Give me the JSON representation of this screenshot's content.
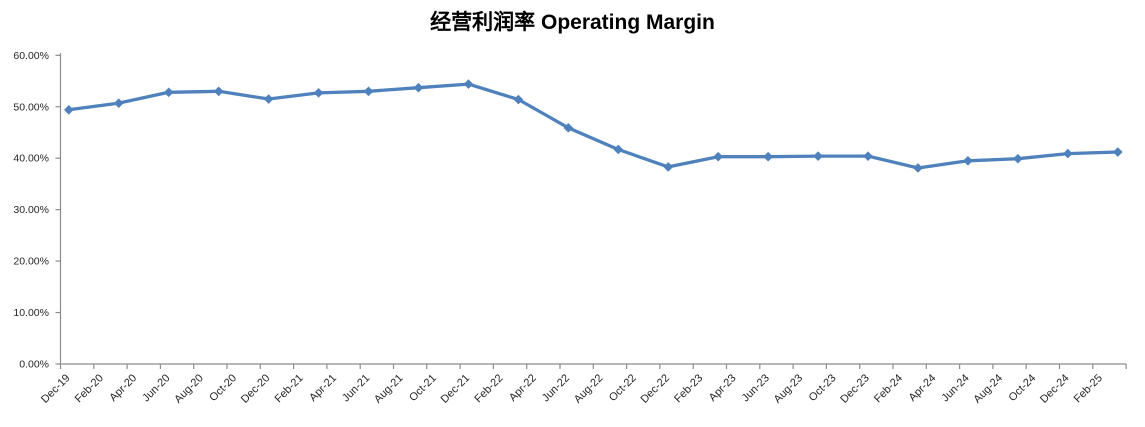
{
  "title": "经营利润率 Operating Margin",
  "chart_data": {
    "type": "line",
    "title": "经营利润率 Operating Margin",
    "series": [
      {
        "name": "经营利润率 Operating Margin",
        "x": [
          "Dec-19",
          "Mar-20",
          "Jun-20",
          "Sep-20",
          "Dec-20",
          "Mar-21",
          "Jun-21",
          "Sep-21",
          "Dec-21",
          "Mar-22",
          "Jun-22",
          "Sep-22",
          "Dec-22",
          "Mar-23",
          "Jun-23",
          "Sep-23",
          "Dec-23",
          "Mar-24",
          "Jun-24",
          "Sep-24",
          "Dec-24",
          "Mar-25"
        ],
        "values": [
          49.4,
          50.7,
          52.8,
          53.0,
          51.5,
          52.7,
          53.0,
          53.7,
          54.4,
          51.4,
          45.9,
          41.7,
          38.3,
          40.3,
          40.3,
          40.4,
          40.4,
          38.1,
          39.5,
          39.9,
          40.9,
          41.2
        ],
        "unit": "%"
      }
    ],
    "x_tick_labels": [
      "Dec-19",
      "Feb-20",
      "Apr-20",
      "Jun-20",
      "Aug-20",
      "Oct-20",
      "Dec-20",
      "Feb-21",
      "Apr-21",
      "Jun-21",
      "Aug-21",
      "Oct-21",
      "Dec-21",
      "Feb-22",
      "Apr-22",
      "Jun-22",
      "Aug-22",
      "Oct-22",
      "Dec-22",
      "Feb-23",
      "Apr-23",
      "Jun-23",
      "Aug-23",
      "Oct-23",
      "Dec-23",
      "Feb-24",
      "Apr-24",
      "Jun-24",
      "Aug-24",
      "Oct-24",
      "Dec-24",
      "Feb-25"
    ],
    "y_tick_labels": [
      "0.00%",
      "10.00%",
      "20.00%",
      "30.00%",
      "40.00%",
      "50.00%",
      "60.00%"
    ],
    "ylim": [
      0,
      60
    ],
    "x_tick_interval_months": 2,
    "data_interval_months": 3,
    "grid": false,
    "legend": false,
    "line_color": "#4F81BD",
    "axis_color": "#8C8C8C",
    "label_color": "#262626",
    "marker": "diamond"
  }
}
